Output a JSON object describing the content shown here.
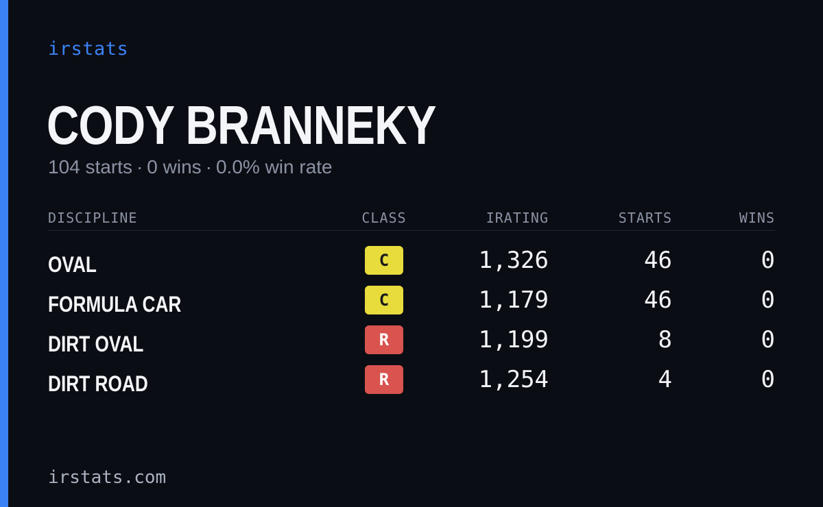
{
  "brand": "irstats",
  "driver": {
    "name": "CODY BRANNEKY",
    "starts_text": "104 starts",
    "wins_text": "0 wins",
    "win_rate_text": "0.0% win rate",
    "separator": "·"
  },
  "table": {
    "headers": {
      "discipline": "DISCIPLINE",
      "class": "CLASS",
      "irating": "IRATING",
      "starts": "STARTS",
      "wins": "WINS"
    },
    "rows": [
      {
        "discipline": "OVAL",
        "class": "C",
        "class_bg": "#e8dc3c",
        "class_fg": "#1a1a1a",
        "irating": "1,326",
        "starts": "46",
        "wins": "0"
      },
      {
        "discipline": "FORMULA CAR",
        "class": "C",
        "class_bg": "#e8dc3c",
        "class_fg": "#1a1a1a",
        "irating": "1,179",
        "starts": "46",
        "wins": "0"
      },
      {
        "discipline": "DIRT OVAL",
        "class": "R",
        "class_bg": "#d9534f",
        "class_fg": "#ffffff",
        "irating": "1,199",
        "starts": "8",
        "wins": "0"
      },
      {
        "discipline": "DIRT ROAD",
        "class": "R",
        "class_bg": "#d9534f",
        "class_fg": "#ffffff",
        "irating": "1,254",
        "starts": "4",
        "wins": "0"
      }
    ]
  },
  "footer": "irstats.com",
  "colors": {
    "background": "#0b0d14",
    "accent": "#3b82f6",
    "text_primary": "#f4f5f8",
    "text_muted": "#8b93a4"
  }
}
